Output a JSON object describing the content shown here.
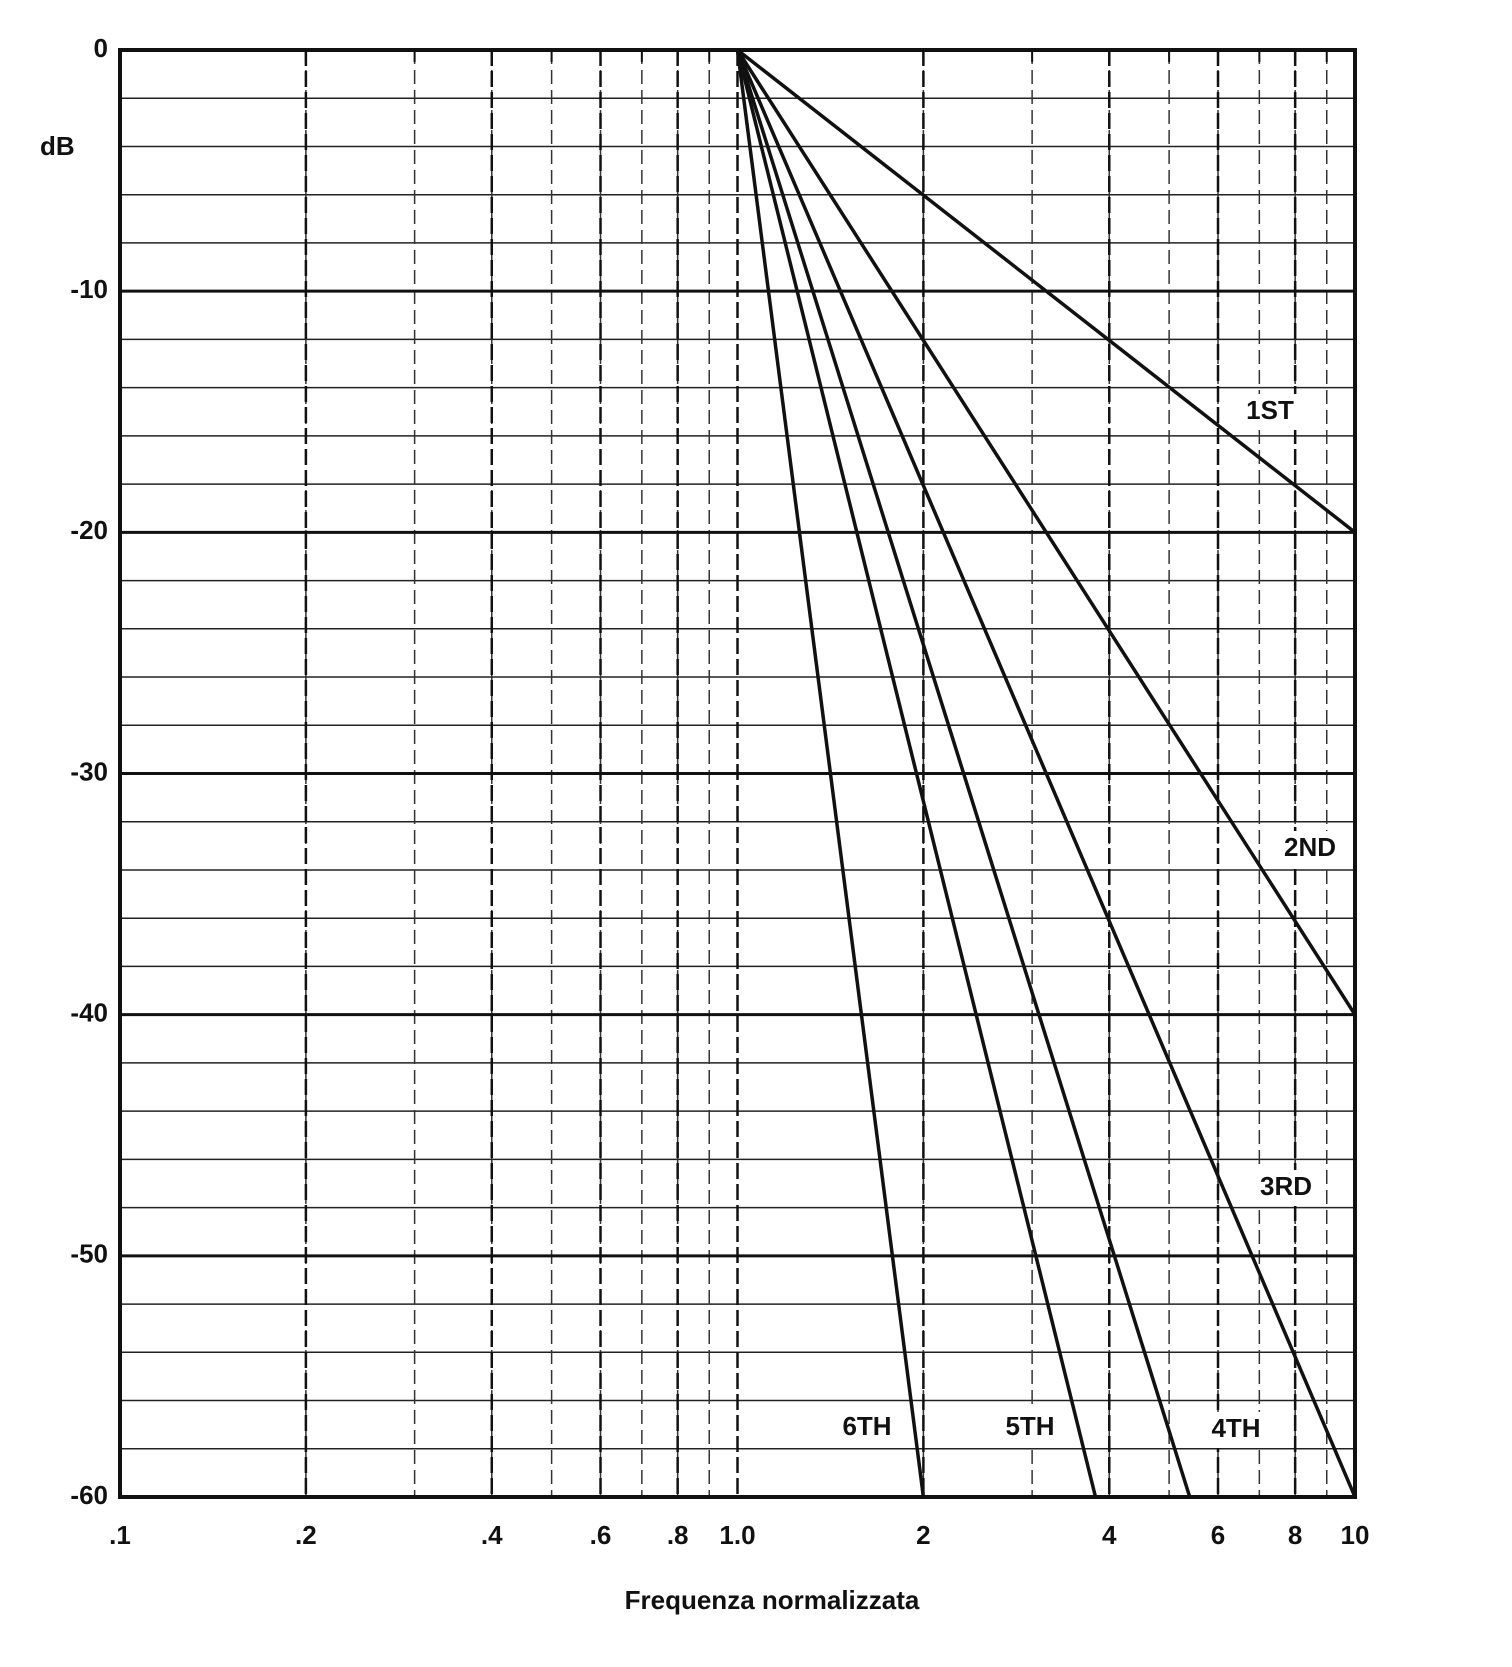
{
  "chart_data": {
    "type": "line",
    "xlabel": "Frequenza normalizzata",
    "ylabel": "dB",
    "xscale": "log",
    "xlim": [
      0.1,
      10
    ],
    "ylim": [
      -60,
      0
    ],
    "xticks": [
      {
        "value": 0.1,
        "label": ".1"
      },
      {
        "value": 0.2,
        "label": ".2"
      },
      {
        "value": 0.4,
        "label": ".4"
      },
      {
        "value": 0.6,
        "label": ".6"
      },
      {
        "value": 0.8,
        "label": ".8"
      },
      {
        "value": 1,
        "label": "1.0"
      },
      2,
      4,
      6,
      8,
      10
    ],
    "yticks": [
      0,
      -10,
      -20,
      -30,
      -40,
      -50,
      -60
    ],
    "grid": true,
    "series": [
      {
        "name": "1ST",
        "color": "#111111",
        "x": [
          1,
          10
        ],
        "values": [
          0,
          -20
        ]
      },
      {
        "name": "2ND",
        "color": "#111111",
        "x": [
          1,
          10
        ],
        "values": [
          0,
          -40
        ]
      },
      {
        "name": "3RD",
        "color": "#111111",
        "x": [
          1,
          10
        ],
        "values": [
          0,
          -60
        ]
      },
      {
        "name": "4TH",
        "color": "#111111",
        "x": [
          1,
          5.4
        ],
        "values": [
          0,
          -60
        ]
      },
      {
        "name": "5TH",
        "color": "#111111",
        "x": [
          1,
          3.8
        ],
        "values": [
          0,
          -60
        ]
      },
      {
        "name": "6TH",
        "color": "#111111",
        "x": [
          1,
          2
        ],
        "values": [
          0,
          -60
        ]
      }
    ]
  }
}
